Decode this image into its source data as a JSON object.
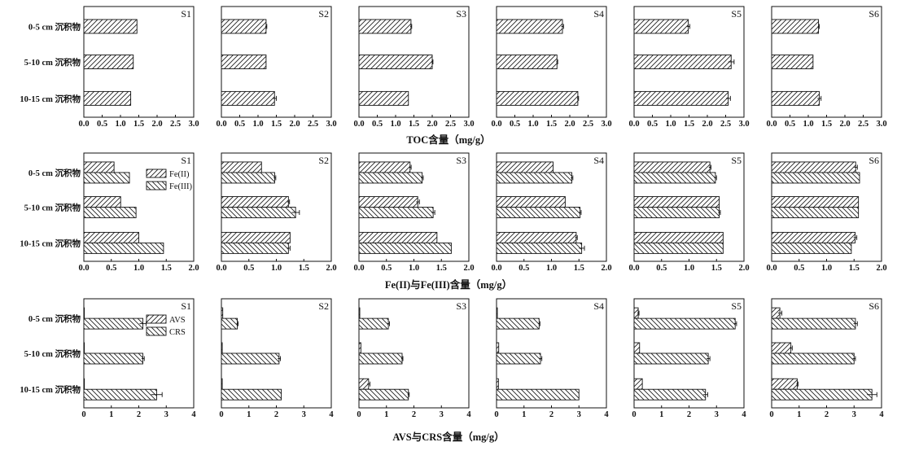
{
  "chart_data": [
    {
      "type": "bar",
      "orientation": "horizontal",
      "xlabel": "TOC含量（mg/g）",
      "xlim": [
        0,
        3.0
      ],
      "xticks": [
        "0.0",
        "0.5",
        "1.0",
        "1.5",
        "2.0",
        "2.5",
        "3.0"
      ],
      "categories": [
        "0-5 cm 沉积物",
        "5-10 cm 沉积物",
        "10-15 cm 沉积物"
      ],
      "legend": [],
      "panels": [
        {
          "name": "S1",
          "series": [
            {
              "values": [
                1.45,
                1.35,
                1.28
              ],
              "errors": [
                0,
                0,
                0
              ]
            }
          ]
        },
        {
          "name": "S2",
          "series": [
            {
              "values": [
                1.22,
                1.22,
                1.45
              ],
              "errors": [
                0.02,
                0,
                0.05
              ]
            }
          ]
        },
        {
          "name": "S3",
          "series": [
            {
              "values": [
                1.42,
                2.0,
                1.35
              ],
              "errors": [
                0.02,
                0.02,
                0
              ]
            }
          ]
        },
        {
          "name": "S4",
          "series": [
            {
              "values": [
                1.8,
                1.65,
                2.22
              ],
              "errors": [
                0.03,
                0.02,
                0.02
              ]
            }
          ]
        },
        {
          "name": "S5",
          "series": [
            {
              "values": [
                1.48,
                2.65,
                2.57
              ],
              "errors": [
                0.04,
                0.08,
                0.06
              ]
            }
          ]
        },
        {
          "name": "S6",
          "series": [
            {
              "values": [
                1.28,
                1.13,
                1.3
              ],
              "errors": [
                0.02,
                0,
                0.05
              ]
            }
          ]
        }
      ]
    },
    {
      "type": "bar",
      "orientation": "horizontal",
      "xlabel": "Fe(II)与Fe(III)含量（mg/g）",
      "xlim": [
        0,
        2.0
      ],
      "xticks": [
        "0.0",
        "0.5",
        "1.0",
        "1.5",
        "2.0"
      ],
      "categories": [
        "0-5 cm 沉积物",
        "5-10 cm 沉积物",
        "10-15 cm 沉积物"
      ],
      "legend": [
        {
          "name": "Fe(II)",
          "pattern": "hatch-right"
        },
        {
          "name": "Fe(III)",
          "pattern": "hatch-left"
        }
      ],
      "panels": [
        {
          "name": "S1",
          "series": [
            {
              "name": "Fe(II)",
              "values": [
                0.55,
                0.67,
                1.0
              ],
              "errors": [
                0,
                0,
                0
              ]
            },
            {
              "name": "Fe(III)",
              "values": [
                0.83,
                0.95,
                1.45
              ],
              "errors": [
                0,
                0,
                0
              ]
            }
          ]
        },
        {
          "name": "S2",
          "series": [
            {
              "name": "Fe(II)",
              "values": [
                0.73,
                1.22,
                1.25
              ],
              "errors": [
                0,
                0.02,
                0
              ]
            },
            {
              "name": "Fe(III)",
              "values": [
                0.97,
                1.35,
                1.22
              ],
              "errors": [
                0.02,
                0.07,
                0.03
              ]
            }
          ]
        },
        {
          "name": "S3",
          "series": [
            {
              "name": "Fe(II)",
              "values": [
                0.93,
                1.07,
                1.42
              ],
              "errors": [
                0.02,
                0.03,
                0
              ]
            },
            {
              "name": "Fe(III)",
              "values": [
                1.15,
                1.35,
                1.68
              ],
              "errors": [
                0.02,
                0.03,
                0
              ]
            }
          ]
        },
        {
          "name": "S4",
          "series": [
            {
              "name": "Fe(II)",
              "values": [
                1.03,
                1.25,
                1.45
              ],
              "errors": [
                0,
                0,
                0.02
              ]
            },
            {
              "name": "Fe(III)",
              "values": [
                1.37,
                1.52,
                1.55
              ],
              "errors": [
                0.02,
                0.02,
                0.05
              ]
            }
          ]
        },
        {
          "name": "S5",
          "series": [
            {
              "name": "Fe(II)",
              "values": [
                1.38,
                1.55,
                1.62
              ],
              "errors": [
                0.02,
                0,
                0
              ]
            },
            {
              "name": "Fe(III)",
              "values": [
                1.48,
                1.55,
                1.62
              ],
              "errors": [
                0.02,
                0.02,
                0
              ]
            }
          ]
        },
        {
          "name": "S6",
          "series": [
            {
              "name": "Fe(II)",
              "values": [
                1.53,
                1.58,
                1.52
              ],
              "errors": [
                0.03,
                0,
                0.03
              ]
            },
            {
              "name": "Fe(III)",
              "values": [
                1.6,
                1.58,
                1.45
              ],
              "errors": [
                0,
                0,
                0
              ]
            }
          ]
        }
      ]
    },
    {
      "type": "bar",
      "orientation": "horizontal",
      "xlabel": "AVS与CRS含量（mg/g）",
      "xlim": [
        0,
        4
      ],
      "xticks": [
        "0",
        "1",
        "2",
        "3",
        "4"
      ],
      "categories": [
        "0-5 cm 沉积物",
        "5-10 cm 沉积物",
        "10-15 cm 沉积物"
      ],
      "legend": [
        {
          "name": "AVS",
          "pattern": "hatch-right"
        },
        {
          "name": "CRS",
          "pattern": "hatch-left"
        }
      ],
      "panels": [
        {
          "name": "S1",
          "series": [
            {
              "name": "AVS",
              "values": [
                0,
                0,
                0.02
              ],
              "errors": [
                0,
                0,
                0
              ]
            },
            {
              "name": "CRS",
              "values": [
                2.15,
                2.15,
                2.65
              ],
              "errors": [
                0.12,
                0.05,
                0.2
              ]
            }
          ]
        },
        {
          "name": "S2",
          "series": [
            {
              "name": "AVS",
              "values": [
                0.05,
                0.03,
                0.03
              ],
              "errors": [
                0,
                0,
                0
              ]
            },
            {
              "name": "CRS",
              "values": [
                0.58,
                2.1,
                2.18
              ],
              "errors": [
                0.03,
                0.05,
                0
              ]
            }
          ]
        },
        {
          "name": "S3",
          "series": [
            {
              "name": "AVS",
              "values": [
                0.03,
                0.07,
                0.35
              ],
              "errors": [
                0,
                0,
                0.05
              ]
            },
            {
              "name": "CRS",
              "values": [
                1.07,
                1.57,
                1.8
              ],
              "errors": [
                0.04,
                0.03,
                0.03
              ]
            }
          ]
        },
        {
          "name": "S4",
          "series": [
            {
              "name": "AVS",
              "values": [
                0.03,
                0.08,
                0.07
              ],
              "errors": [
                0,
                0,
                0
              ]
            },
            {
              "name": "CRS",
              "values": [
                1.55,
                1.6,
                3.0
              ],
              "errors": [
                0.03,
                0.05,
                0
              ]
            }
          ]
        },
        {
          "name": "S5",
          "series": [
            {
              "name": "AVS",
              "values": [
                0.15,
                0.2,
                0.3
              ],
              "errors": [
                0.03,
                0,
                0
              ]
            },
            {
              "name": "CRS",
              "values": [
                3.68,
                2.7,
                2.6
              ],
              "errors": [
                0.05,
                0.06,
                0.08
              ]
            }
          ]
        },
        {
          "name": "S6",
          "series": [
            {
              "name": "AVS",
              "values": [
                0.3,
                0.7,
                0.93
              ],
              "errors": [
                0.07,
                0.05,
                0.03
              ]
            },
            {
              "name": "CRS",
              "values": [
                3.05,
                3.0,
                3.65
              ],
              "errors": [
                0.07,
                0.05,
                0.18
              ]
            }
          ]
        }
      ]
    }
  ]
}
